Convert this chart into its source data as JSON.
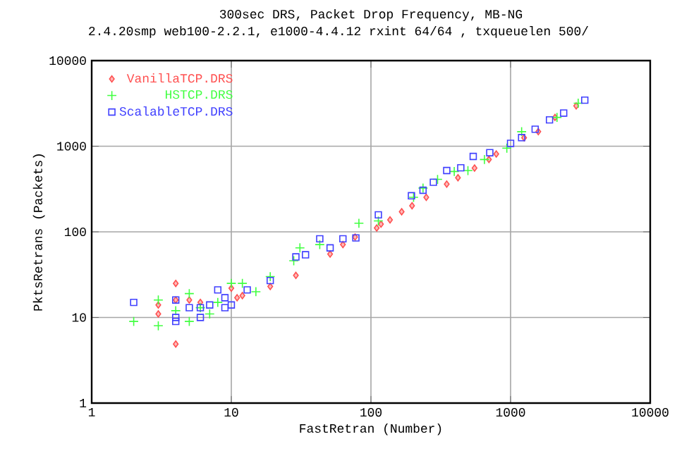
{
  "chart_data": {
    "type": "scatter",
    "title": "300sec DRS, Packet Drop Frequency, MB-NG",
    "subtitle": "2.4.20smp web100-2.2.1, e1000-4.4.12 rxint 64/64 , txqueuelen 500/",
    "xlabel": "FastRetran (Number)",
    "ylabel": "PktsRetrans (Packets)",
    "log": "xy",
    "grid": true,
    "legend": "top left",
    "xlim": [
      1,
      10000
    ],
    "ylim": [
      1,
      10000
    ],
    "xticks": [
      1,
      10,
      100,
      1000,
      10000
    ],
    "yticks": [
      1,
      10,
      100,
      1000,
      10000
    ],
    "series": [
      {
        "name": "VanillaTCP.DRS",
        "color": "#ff5050",
        "marker": "diamond",
        "x": [
          3.0,
          3.0,
          4.0,
          4.0,
          4.0,
          5.0,
          6.0,
          10,
          11,
          12,
          19,
          29,
          51,
          63,
          77,
          110,
          118,
          137,
          166,
          197,
          249,
          349,
          420,
          552,
          700,
          790,
          1250,
          1580,
          2080,
          2950
        ],
        "values": [
          14,
          11,
          25,
          16,
          4.9,
          16,
          15,
          22,
          17,
          18,
          23,
          31,
          55,
          71,
          87,
          111,
          123,
          138,
          172,
          202,
          253,
          361,
          429,
          556,
          700,
          812,
          1255,
          1480,
          2170,
          2960
        ]
      },
      {
        "name": "HSTCP.DRS",
        "color": "#40ff40",
        "marker": "cross",
        "x": [
          2.0,
          3.0,
          3.0,
          4.0,
          5.0,
          5.0,
          6.0,
          7.0,
          8.0,
          10,
          12,
          15,
          19,
          28,
          31,
          43,
          82,
          113,
          202,
          236,
          300,
          395,
          495,
          650,
          940,
          1200,
          2150,
          3050
        ],
        "values": [
          9,
          8,
          16,
          12,
          19,
          9,
          13,
          11,
          15,
          25,
          25,
          20,
          30,
          46,
          65,
          71,
          126,
          134,
          253,
          325,
          410,
          507,
          520,
          700,
          950,
          1480,
          2170,
          3180
        ]
      },
      {
        "name": "ScalableTCP.DRS",
        "color": "#4040ff",
        "marker": "square",
        "x": [
          2.0,
          4.0,
          4.0,
          4.0,
          5.0,
          6.0,
          6.0,
          7.0,
          8.0,
          9.0,
          9.0,
          10,
          13,
          19,
          29,
          34,
          43,
          51,
          63,
          78,
          113,
          195,
          236,
          280,
          349,
          440,
          540,
          710,
          1000,
          1200,
          1500,
          1900,
          2400,
          3400
        ],
        "values": [
          15,
          16,
          10,
          9,
          13,
          13,
          10,
          14,
          21,
          17,
          13,
          14,
          21,
          27,
          51,
          54,
          83,
          65,
          83,
          85,
          158,
          264,
          306,
          380,
          520,
          560,
          760,
          840,
          1080,
          1260,
          1580,
          2030,
          2440,
          3450
        ]
      }
    ]
  }
}
